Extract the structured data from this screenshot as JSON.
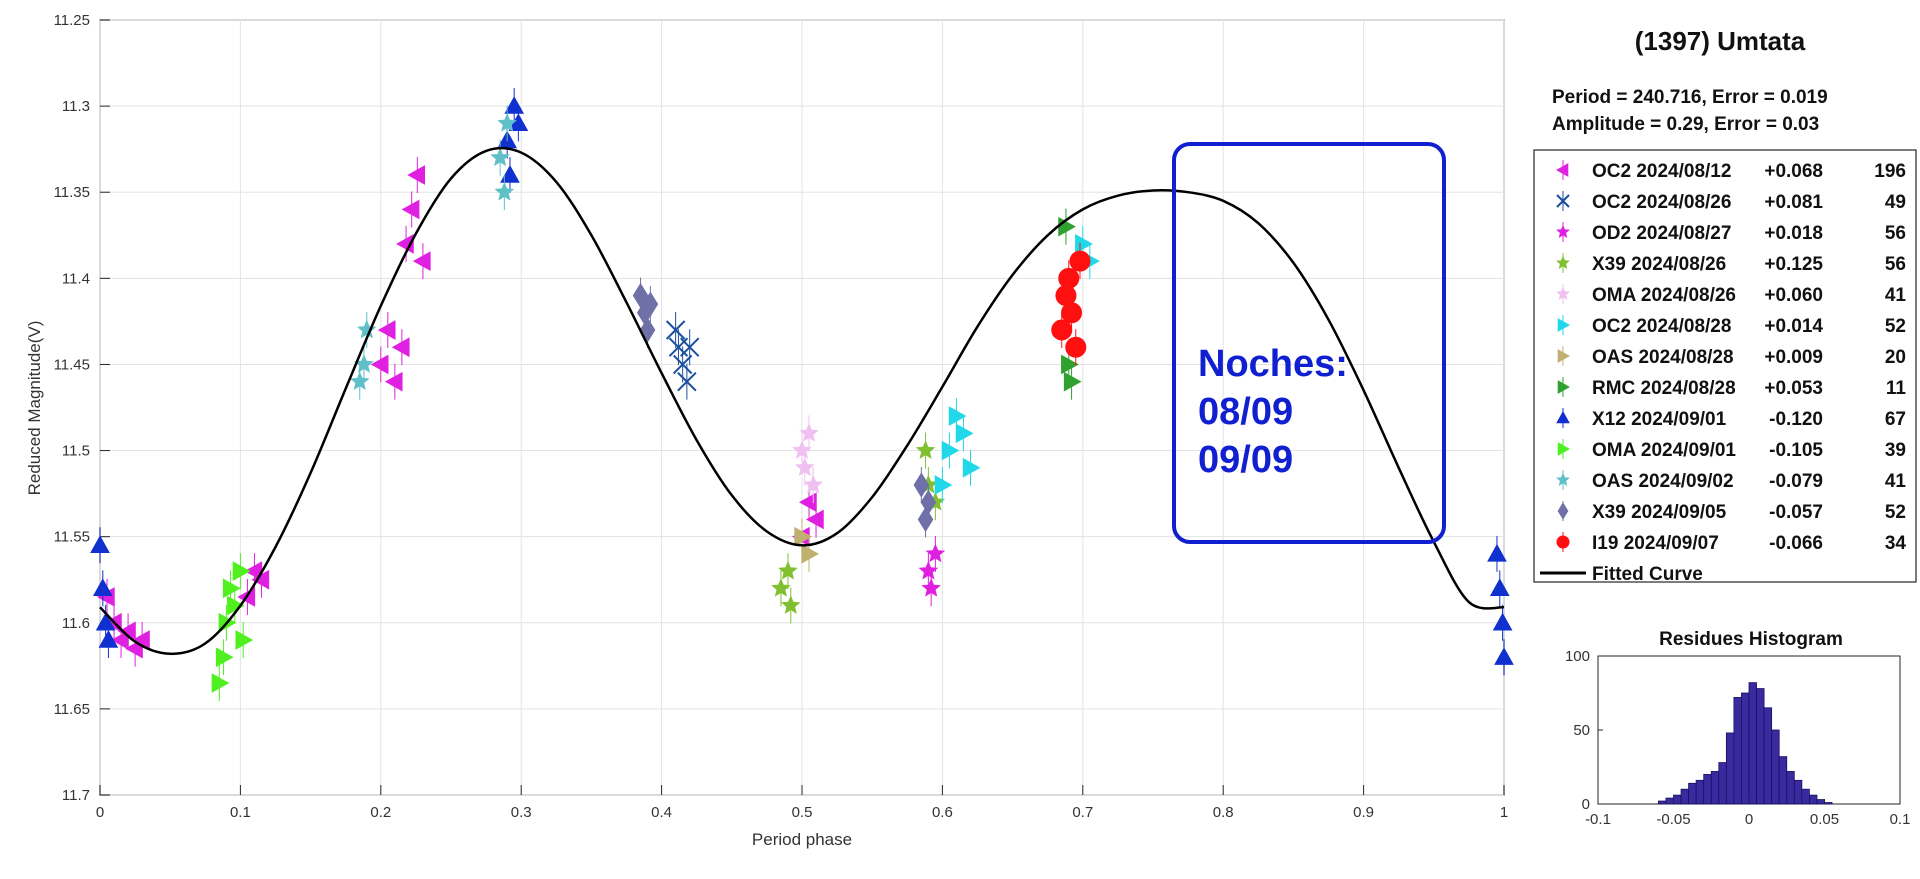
{
  "chart_data": [
    {
      "type": "scatter",
      "title": "",
      "xlabel": "Period phase",
      "ylabel": "Reduced Magnitude(V)",
      "xlim": [
        0,
        1
      ],
      "ylim": [
        11.25,
        11.7
      ],
      "y_reversed": true,
      "grid": true,
      "x_ticks": [
        "0",
        "0.1",
        "0.2",
        "0.3",
        "0.4",
        "0.5",
        "0.6",
        "0.7",
        "0.8",
        "0.9",
        "1"
      ],
      "y_ticks": [
        "11.25",
        "11.3",
        "11.35",
        "11.4",
        "11.45",
        "11.5",
        "11.55",
        "11.6",
        "11.65",
        "11.7"
      ],
      "curve": {
        "name": "Fitted Curve",
        "color": "#000000",
        "points": [
          [
            0,
            11.591
          ],
          [
            0.025,
            11.611
          ],
          [
            0.05,
            11.618
          ],
          [
            0.075,
            11.612
          ],
          [
            0.1,
            11.59
          ],
          [
            0.125,
            11.556
          ],
          [
            0.15,
            11.513
          ],
          [
            0.175,
            11.464
          ],
          [
            0.2,
            11.416
          ],
          [
            0.225,
            11.374
          ],
          [
            0.25,
            11.342
          ],
          [
            0.275,
            11.326
          ],
          [
            0.3,
            11.327
          ],
          [
            0.325,
            11.344
          ],
          [
            0.35,
            11.375
          ],
          [
            0.375,
            11.414
          ],
          [
            0.4,
            11.455
          ],
          [
            0.425,
            11.494
          ],
          [
            0.45,
            11.526
          ],
          [
            0.475,
            11.547
          ],
          [
            0.5,
            11.555
          ],
          [
            0.525,
            11.548
          ],
          [
            0.55,
            11.527
          ],
          [
            0.575,
            11.497
          ],
          [
            0.6,
            11.463
          ],
          [
            0.625,
            11.428
          ],
          [
            0.65,
            11.398
          ],
          [
            0.675,
            11.375
          ],
          [
            0.7,
            11.36
          ],
          [
            0.725,
            11.352
          ],
          [
            0.75,
            11.349
          ],
          [
            0.775,
            11.35
          ],
          [
            0.8,
            11.355
          ],
          [
            0.825,
            11.368
          ],
          [
            0.85,
            11.391
          ],
          [
            0.875,
            11.424
          ],
          [
            0.9,
            11.465
          ],
          [
            0.925,
            11.51
          ],
          [
            0.95,
            11.553
          ],
          [
            0.975,
            11.588
          ],
          [
            1,
            11.591
          ]
        ]
      },
      "series": [
        {
          "name": "OC2 2024/08/12",
          "offset": "+0.068",
          "count": "196",
          "color": "#e020e0",
          "marker": "tri-left",
          "points": [
            [
              0.005,
              11.585
            ],
            [
              0.01,
              11.6
            ],
            [
              0.015,
              11.61
            ],
            [
              0.02,
              11.605
            ],
            [
              0.025,
              11.615
            ],
            [
              0.03,
              11.61
            ],
            [
              0.105,
              11.585
            ],
            [
              0.11,
              11.57
            ],
            [
              0.115,
              11.575
            ],
            [
              0.2,
              11.45
            ],
            [
              0.205,
              11.43
            ],
            [
              0.21,
              11.46
            ],
            [
              0.215,
              11.44
            ],
            [
              0.218,
              11.38
            ],
            [
              0.222,
              11.36
            ],
            [
              0.226,
              11.34
            ],
            [
              0.23,
              11.39
            ],
            [
              0.5,
              11.55
            ],
            [
              0.505,
              11.53
            ],
            [
              0.51,
              11.54
            ]
          ]
        },
        {
          "name": "OC2 2024/08/26",
          "offset": "+0.081",
          "count": "49",
          "color": "#1a4fa0",
          "marker": "x",
          "points": [
            [
              0.41,
              11.43
            ],
            [
              0.412,
              11.44
            ],
            [
              0.415,
              11.45
            ],
            [
              0.418,
              11.46
            ],
            [
              0.42,
              11.44
            ]
          ]
        },
        {
          "name": "OD2 2024/08/27",
          "offset": "+0.018",
          "count": "56",
          "color": "#e020e0",
          "marker": "star",
          "points": [
            [
              0.59,
              11.57
            ],
            [
              0.592,
              11.58
            ],
            [
              0.595,
              11.56
            ]
          ]
        },
        {
          "name": "X39 2024/08/26",
          "offset": "+0.125",
          "count": "56",
          "color": "#80c030",
          "marker": "star",
          "points": [
            [
              0.485,
              11.58
            ],
            [
              0.49,
              11.57
            ],
            [
              0.492,
              11.59
            ],
            [
              0.588,
              11.5
            ],
            [
              0.59,
              11.52
            ],
            [
              0.595,
              11.53
            ]
          ]
        },
        {
          "name": "OMA 2024/08/26",
          "offset": "+0.060",
          "count": "41",
          "color": "#f0c0f0",
          "marker": "star",
          "points": [
            [
              0.5,
              11.5
            ],
            [
              0.502,
              11.51
            ],
            [
              0.505,
              11.49
            ],
            [
              0.508,
              11.52
            ]
          ]
        },
        {
          "name": "OC2 2024/08/28",
          "offset": "+0.014",
          "count": "52",
          "color": "#20d8e8",
          "marker": "tri-right",
          "points": [
            [
              0.6,
              11.52
            ],
            [
              0.605,
              11.5
            ],
            [
              0.61,
              11.48
            ],
            [
              0.615,
              11.49
            ],
            [
              0.62,
              11.51
            ],
            [
              0.7,
              11.38
            ],
            [
              0.705,
              11.39
            ]
          ]
        },
        {
          "name": "OAS 2024/08/28",
          "offset": "+0.009",
          "count": "20",
          "color": "#c0b070",
          "marker": "tri-right",
          "points": [
            [
              0.5,
              11.55
            ],
            [
              0.505,
              11.56
            ]
          ]
        },
        {
          "name": "RMC 2024/08/28",
          "offset": "+0.053",
          "count": "11",
          "color": "#30a030",
          "marker": "tri-right",
          "points": [
            [
              0.688,
              11.37
            ],
            [
              0.69,
              11.45
            ],
            [
              0.692,
              11.46
            ]
          ]
        },
        {
          "name": "X12 2024/09/01",
          "offset": "-0.120",
          "count": "67",
          "color": "#1030d0",
          "marker": "tri-up",
          "points": [
            [
              0,
              11.555
            ],
            [
              0.002,
              11.58
            ],
            [
              0.004,
              11.6
            ],
            [
              0.006,
              11.61
            ],
            [
              0.29,
              11.32
            ],
            [
              0.292,
              11.34
            ],
            [
              0.295,
              11.3
            ],
            [
              0.298,
              11.31
            ],
            [
              0.995,
              11.56
            ],
            [
              0.997,
              11.58
            ],
            [
              0.999,
              11.6
            ],
            [
              1,
              11.62
            ]
          ]
        },
        {
          "name": "OMA 2024/09/01",
          "offset": "-0.105",
          "count": "39",
          "color": "#50f020",
          "marker": "tri-right",
          "points": [
            [
              0.085,
              11.635
            ],
            [
              0.088,
              11.62
            ],
            [
              0.09,
              11.6
            ],
            [
              0.093,
              11.58
            ],
            [
              0.096,
              11.59
            ],
            [
              0.1,
              11.57
            ],
            [
              0.102,
              11.61
            ]
          ]
        },
        {
          "name": "OAS 2024/09/02",
          "offset": "-0.079",
          "count": "41",
          "color": "#60c0c8",
          "marker": "star",
          "points": [
            [
              0.185,
              11.46
            ],
            [
              0.188,
              11.45
            ],
            [
              0.19,
              11.43
            ],
            [
              0.285,
              11.33
            ],
            [
              0.288,
              11.35
            ],
            [
              0.29,
              11.31
            ]
          ]
        },
        {
          "name": "X39 2024/09/05",
          "offset": "-0.057",
          "count": "52",
          "color": "#7070a8",
          "marker": "diamond",
          "points": [
            [
              0.385,
              11.41
            ],
            [
              0.388,
              11.42
            ],
            [
              0.39,
              11.43
            ],
            [
              0.392,
              11.415
            ],
            [
              0.585,
              11.52
            ],
            [
              0.588,
              11.54
            ],
            [
              0.59,
              11.53
            ]
          ]
        },
        {
          "name": "I19 2024/09/07",
          "offset": "-0.066",
          "count": "34",
          "color": "#ff1010",
          "marker": "circle",
          "points": [
            [
              0.685,
              11.43
            ],
            [
              0.688,
              11.41
            ],
            [
              0.69,
              11.4
            ],
            [
              0.692,
              11.42
            ],
            [
              0.695,
              11.44
            ],
            [
              0.698,
              11.39
            ]
          ]
        }
      ],
      "legend_last_entry": "Fitted Curve",
      "legend_placement": "right"
    },
    {
      "type": "bar",
      "title": "Residues Histogram",
      "xlim": [
        -0.1,
        0.1
      ],
      "ylim": [
        0,
        100
      ],
      "x_ticks": [
        "-0.1",
        "-0.05",
        "0",
        "0.05",
        "0.1"
      ],
      "y_ticks": [
        "0",
        "50",
        "100"
      ],
      "bin_width": 0.005,
      "bin_starts": [
        -0.06,
        -0.055,
        -0.05,
        -0.045,
        -0.04,
        -0.035,
        -0.03,
        -0.025,
        -0.02,
        -0.015,
        -0.01,
        -0.005,
        0,
        0.005,
        0.01,
        0.015,
        0.02,
        0.025,
        0.03,
        0.035,
        0.04,
        0.045,
        0.05
      ],
      "values": [
        2,
        4,
        6,
        10,
        14,
        16,
        20,
        22,
        28,
        48,
        72,
        75,
        82,
        78,
        65,
        50,
        32,
        22,
        16,
        10,
        6,
        3,
        1
      ],
      "color": "#3a2aa0"
    }
  ],
  "panel": {
    "title": "(1397) Umtata",
    "period_line": "Period =  240.716, Error = 0.019",
    "amplitude_line": "Amplitude = 0.29, Error = 0.03"
  },
  "annotation": {
    "lines": [
      "Noches:",
      "08/09",
      "09/09"
    ],
    "color": "#1020d0"
  }
}
